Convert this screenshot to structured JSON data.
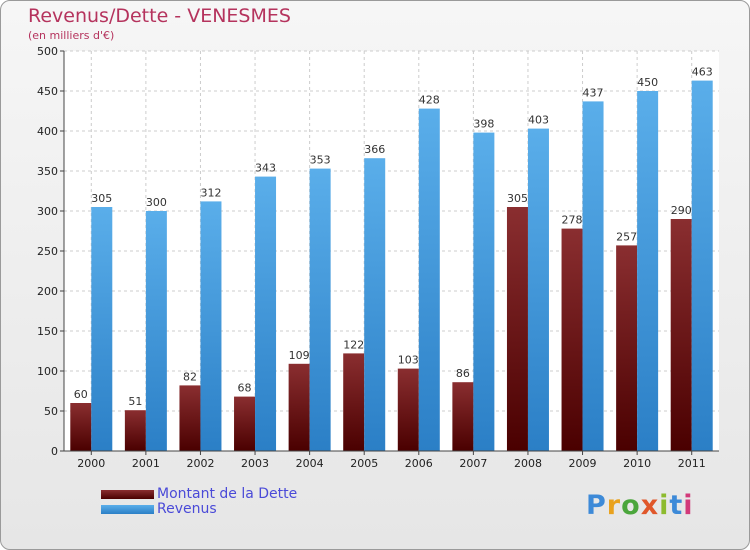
{
  "chart_data": {
    "type": "bar",
    "title": "Revenus/Dette - VENESMES",
    "subtitle": "(en milliers d'€)",
    "categories": [
      "2000",
      "2001",
      "2002",
      "2003",
      "2004",
      "2005",
      "2006",
      "2007",
      "2008",
      "2009",
      "2010",
      "2011"
    ],
    "series": [
      {
        "name": "Montant de la Dette",
        "color": "#6e0f12",
        "values": [
          60,
          51,
          82,
          68,
          109,
          122,
          103,
          86,
          305,
          278,
          257,
          290
        ]
      },
      {
        "name": "Revenus",
        "color": "#4ea1e3",
        "values": [
          305,
          300,
          312,
          343,
          353,
          366,
          428,
          398,
          403,
          437,
          450,
          463
        ]
      }
    ],
    "ylim": [
      0,
      500
    ],
    "yticks": [
      0,
      50,
      100,
      150,
      200,
      250,
      300,
      350,
      400,
      450,
      500
    ],
    "grid": true,
    "legend_position": "bottom-left"
  },
  "branding": {
    "logo_text": "Proxiti",
    "logo_colors": [
      "#3d8ad8",
      "#e9a21e",
      "#4ba63c",
      "#e0572a",
      "#8dbb2e",
      "#3d8ad8",
      "#d23a7a"
    ]
  }
}
